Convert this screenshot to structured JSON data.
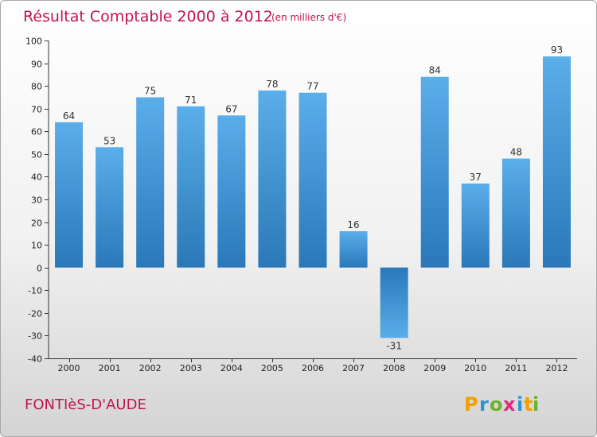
{
  "chart_data": {
    "type": "bar",
    "title": "Résultat Comptable 2000 à 2012",
    "subtitle": "(en milliers d'€)",
    "categories": [
      "2000",
      "2001",
      "2002",
      "2003",
      "2004",
      "2005",
      "2006",
      "2007",
      "2008",
      "2009",
      "2010",
      "2011",
      "2012"
    ],
    "values": [
      64,
      53,
      75,
      71,
      67,
      78,
      77,
      16,
      -31,
      84,
      37,
      48,
      93
    ],
    "ylim": [
      -40,
      100
    ],
    "yticks": [
      -40,
      -30,
      -20,
      -10,
      0,
      10,
      20,
      30,
      40,
      50,
      60,
      70,
      80,
      90,
      100
    ],
    "xlabel": "",
    "ylabel": "",
    "grid": false,
    "bar_color_light": "#5aaeea",
    "bar_color_dark": "#2a78b8"
  },
  "footer": {
    "commune": "FONTIèS-D'AUDE",
    "logo_letters": [
      "P",
      "r",
      "o",
      "x",
      "i",
      "t",
      "i"
    ],
    "logo_colors": [
      "#f2a000",
      "#2f93d0",
      "#69b32f",
      "#e2287a",
      "#2f93d0",
      "#f2a000",
      "#69b32f"
    ]
  },
  "colors": {
    "title": "#c0154a",
    "axis": "#333333"
  }
}
